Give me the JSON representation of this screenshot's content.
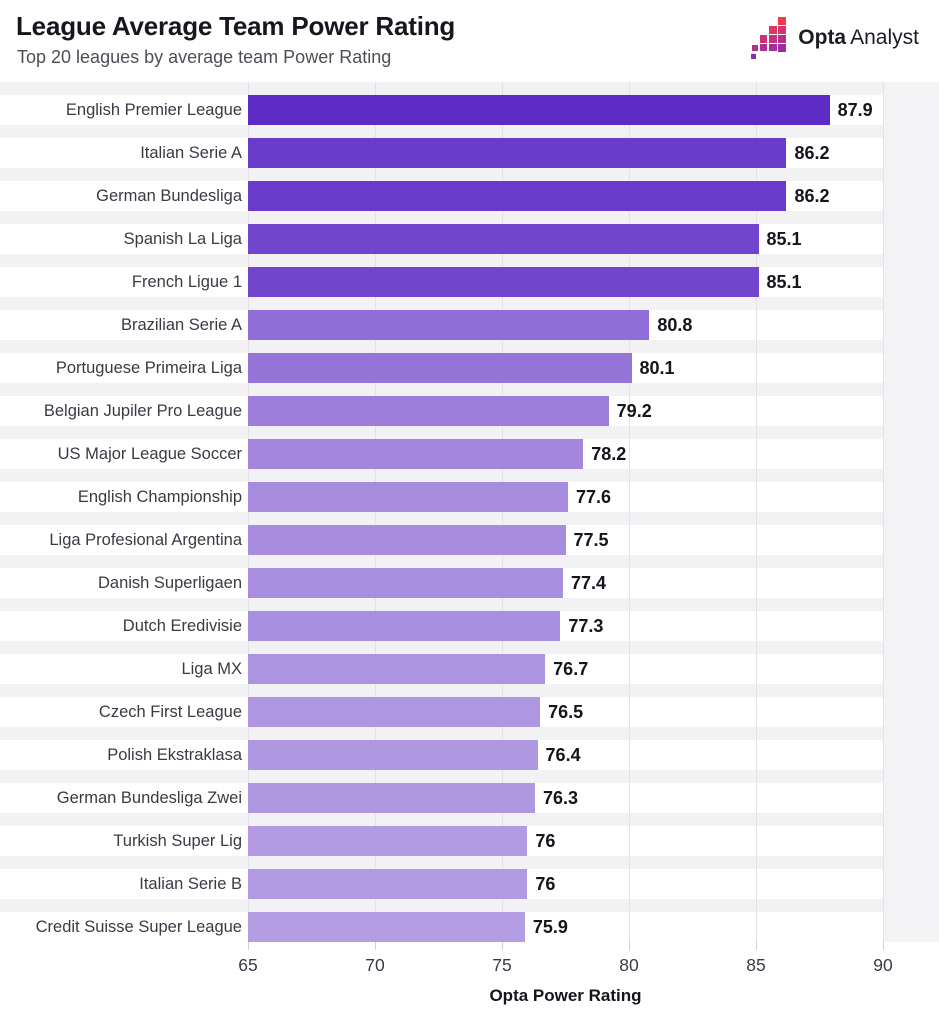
{
  "header": {
    "title": "League Average Team Power Rating",
    "subtitle": "Top 20 leagues by average team Power Rating",
    "logo": {
      "brand_bold": "Opta",
      "brand_regular": "Analyst"
    }
  },
  "chart_data": {
    "type": "bar",
    "orientation": "horizontal",
    "title": "League Average Team Power Rating",
    "subtitle": "Top 20 leagues by average team Power Rating",
    "categories": [
      "English Premier League",
      "Italian Serie A",
      "German Bundesliga",
      "Spanish La Liga",
      "French Ligue 1",
      "Brazilian Serie A",
      "Portuguese Primeira Liga",
      "Belgian Jupiler Pro League",
      "US Major League Soccer",
      "English Championship",
      "Liga Profesional Argentina",
      "Danish Superligaen",
      "Dutch Eredivisie",
      "Liga MX",
      "Czech First League",
      "Polish Ekstraklasa",
      "German Bundesliga Zwei",
      "Turkish Super Lig",
      "Italian Serie B",
      "Credit Suisse Super League"
    ],
    "values": [
      87.9,
      86.2,
      86.2,
      85.1,
      85.1,
      80.8,
      80.1,
      79.2,
      78.2,
      77.6,
      77.5,
      77.4,
      77.3,
      76.7,
      76.5,
      76.4,
      76.3,
      76,
      76,
      75.9
    ],
    "value_labels": [
      "87.9",
      "86.2",
      "86.2",
      "85.1",
      "85.1",
      "80.8",
      "80.1",
      "79.2",
      "78.2",
      "77.6",
      "77.5",
      "77.4",
      "77.3",
      "76.7",
      "76.5",
      "76.4",
      "76.3",
      "76",
      "76",
      "75.9"
    ],
    "xlabel": "Opta Power Rating",
    "x_ticks": [
      65,
      70,
      75,
      80,
      85,
      90
    ],
    "x_tick_labels": [
      "65",
      "70",
      "75",
      "80",
      "85",
      "90"
    ],
    "xlim": [
      65,
      90
    ],
    "grid": true,
    "legend": "none",
    "color_scale": {
      "min_value": 75.9,
      "min_color": "#b39ce2",
      "max_value": 87.9,
      "max_color": "#5e2bc6"
    }
  }
}
